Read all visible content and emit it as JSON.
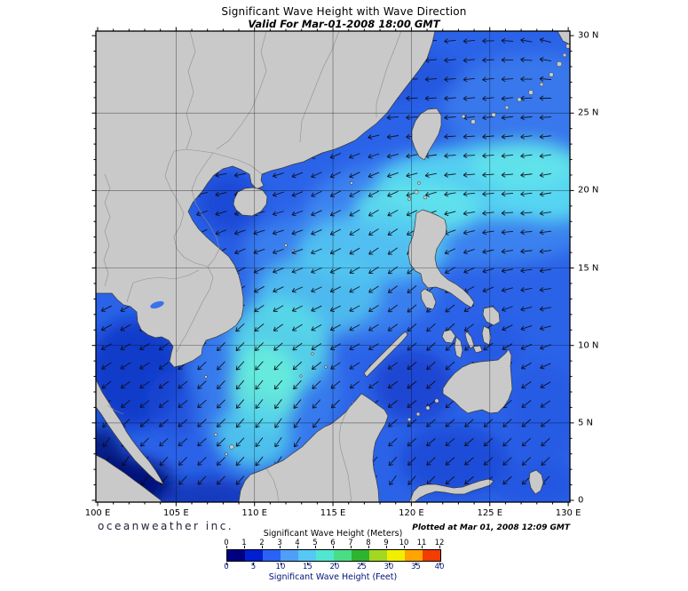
{
  "header": {
    "title": "Significant Wave Height with Wave Direction",
    "subtitle": "Valid For Mar-01-2008 18:00 GMT"
  },
  "footer": {
    "branding": "oceanweather inc.",
    "plotted": "Plotted at Mar 01, 2008 12:09 GMT"
  },
  "axes": {
    "lon": [
      {
        "value": 100,
        "label": "100 E"
      },
      {
        "value": 105,
        "label": "105 E"
      },
      {
        "value": 110,
        "label": "110 E"
      },
      {
        "value": 115,
        "label": "115 E"
      },
      {
        "value": 120,
        "label": "120 E"
      },
      {
        "value": 125,
        "label": "125 E"
      },
      {
        "value": 130,
        "label": "130 E"
      }
    ],
    "lat": [
      {
        "value": 0,
        "label": "0"
      },
      {
        "value": 5,
        "label": "5 N"
      },
      {
        "value": 10,
        "label": "10 N"
      },
      {
        "value": 15,
        "label": "15 N"
      },
      {
        "value": 20,
        "label": "20 N"
      },
      {
        "value": 25,
        "label": "25 N"
      },
      {
        "value": 30,
        "label": "30 N"
      }
    ]
  },
  "colorbar": {
    "meters_label": "Significant Wave Height (Meters)",
    "feet_label": "Significant Wave Height (Feet)",
    "meters_ticks": [
      0,
      1,
      2,
      3,
      4,
      5,
      6,
      7,
      8,
      9,
      10,
      11,
      12
    ],
    "feet_ticks": [
      0,
      5,
      10,
      15,
      20,
      25,
      30,
      35,
      40
    ],
    "colors": [
      "#000080",
      "#001fd0",
      "#2a62f5",
      "#4f9ef8",
      "#55c8f5",
      "#50e6d0",
      "#49de86",
      "#2fb42f",
      "#a3d821",
      "#f2ee00",
      "#ffa400",
      "#f23c00"
    ]
  },
  "map": {
    "ocean_base_color": "#2b63e8",
    "land_color": "#c9c9c9",
    "arrow_color": "#0a0a14"
  }
}
